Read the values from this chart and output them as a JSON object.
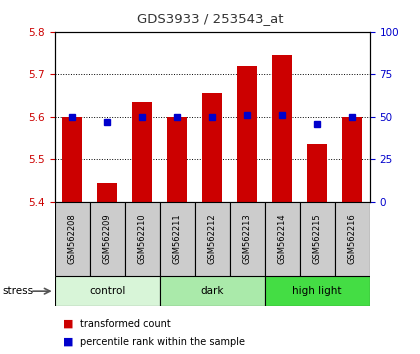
{
  "title": "GDS3933 / 253543_at",
  "samples": [
    "GSM562208",
    "GSM562209",
    "GSM562210",
    "GSM562211",
    "GSM562212",
    "GSM562213",
    "GSM562214",
    "GSM562215",
    "GSM562216"
  ],
  "red_values": [
    5.6,
    5.445,
    5.635,
    5.6,
    5.655,
    5.72,
    5.745,
    5.535,
    5.6
  ],
  "blue_values": [
    50,
    47,
    50,
    50,
    50,
    51,
    51,
    46,
    50
  ],
  "ylim_left": [
    5.4,
    5.8
  ],
  "ylim_right": [
    0,
    100
  ],
  "yticks_left": [
    5.4,
    5.5,
    5.6,
    5.7,
    5.8
  ],
  "yticks_right": [
    0,
    25,
    50,
    75,
    100
  ],
  "groups": [
    {
      "label": "control",
      "start": 0,
      "end": 3,
      "color": "#d8f5d8"
    },
    {
      "label": "dark",
      "start": 3,
      "end": 6,
      "color": "#aaeaaa"
    },
    {
      "label": "high light",
      "start": 6,
      "end": 9,
      "color": "#44dd44"
    }
  ],
  "red_color": "#cc0000",
  "blue_color": "#0000cc",
  "bar_width": 0.55,
  "bar_bottom": 5.4,
  "legend_red": "transformed count",
  "legend_blue": "percentile rank within the sample",
  "stress_label": "stress",
  "title_color": "#333333",
  "left_tick_color": "#cc0000",
  "right_tick_color": "#0000cc",
  "sample_box_color": "#cccccc"
}
